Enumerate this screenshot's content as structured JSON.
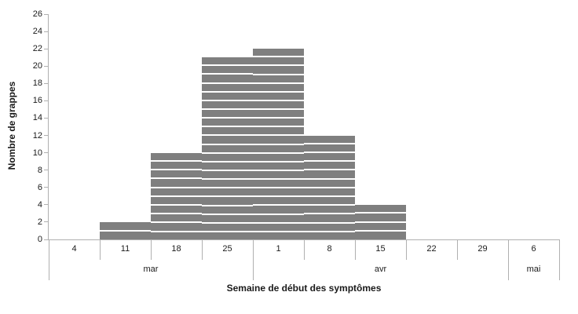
{
  "chart_data": {
    "type": "bar",
    "title": "",
    "xlabel": "Semaine de début des symptômes",
    "ylabel": "Nombre de grappes",
    "categories": [
      "4",
      "11",
      "18",
      "25",
      "1",
      "8",
      "15",
      "22",
      "29",
      "6"
    ],
    "month_groups": [
      {
        "label": "mar",
        "span": 4
      },
      {
        "label": "avr",
        "span": 5
      },
      {
        "label": "mai",
        "span": 1
      }
    ],
    "values": [
      0,
      2,
      10,
      21,
      22,
      12,
      4,
      0,
      0,
      0
    ],
    "ylim": [
      0,
      26
    ],
    "yticks": [
      0,
      2,
      4,
      6,
      8,
      10,
      12,
      14,
      16,
      18,
      20,
      22,
      24,
      26
    ],
    "bar_color": "#7f7f7f",
    "stripe_color": "#ffffff",
    "axis_color": "#b0b0b0",
    "text_color": "#1a1a1a",
    "background_color": "#ffffff",
    "grid": false,
    "legend": false,
    "bar_style": "unit-stacked segments (epidemic curve), gap width 0"
  }
}
